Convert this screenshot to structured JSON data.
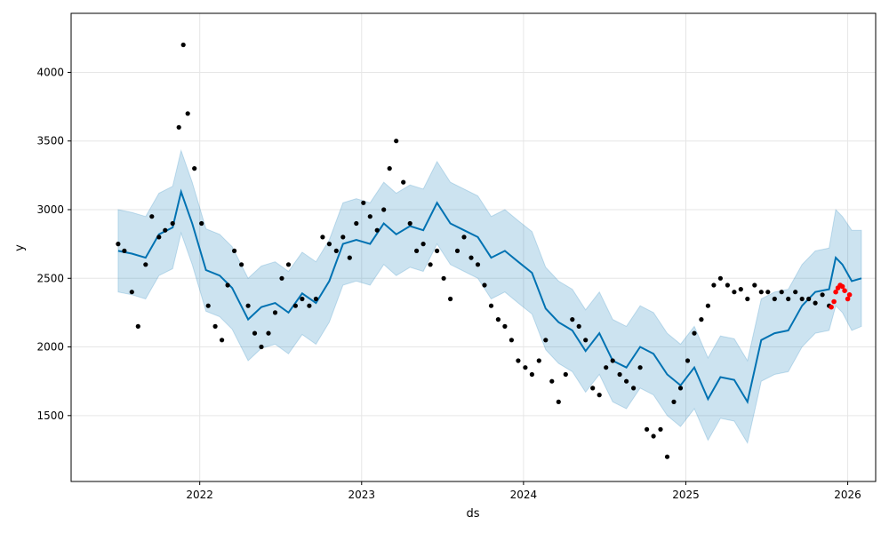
{
  "chart_data": {
    "type": "line",
    "title": "",
    "xlabel": "ds",
    "ylabel": "y",
    "x_ticks": [
      "2022",
      "2023",
      "2024",
      "2025",
      "2026"
    ],
    "y_ticks": [
      1500,
      2000,
      2500,
      3000,
      3500,
      4000
    ],
    "xlim": [
      "2021-03-17",
      "2026-03-05"
    ],
    "ylim": [
      1020,
      4430
    ],
    "grid": true,
    "legend": "none",
    "colors": {
      "forecast": "#0072b2",
      "interval": "#0072b2",
      "history": "#000000",
      "recent": "#ff0000"
    },
    "series": [
      {
        "key": "forecast",
        "x": [
          "2021-07-01",
          "2021-08-01",
          "2021-09-01",
          "2021-10-01",
          "2021-11-01",
          "2021-11-20",
          "2021-12-15",
          "2022-01-15",
          "2022-02-15",
          "2022-03-15",
          "2022-04-20",
          "2022-05-20",
          "2022-06-20",
          "2022-07-20",
          "2022-08-20",
          "2022-09-20",
          "2022-10-20",
          "2022-11-20",
          "2022-12-20",
          "2023-01-20",
          "2023-02-20",
          "2023-03-20",
          "2023-04-20",
          "2023-05-20",
          "2023-06-20",
          "2023-07-20",
          "2023-08-20",
          "2023-09-20",
          "2023-10-20",
          "2023-11-20",
          "2023-12-20",
          "2024-01-20",
          "2024-02-20",
          "2024-03-20",
          "2024-04-20",
          "2024-05-20",
          "2024-06-20",
          "2024-07-20",
          "2024-08-20",
          "2024-09-20",
          "2024-10-20",
          "2024-11-20",
          "2024-12-20",
          "2025-01-20",
          "2025-02-20",
          "2025-03-20",
          "2025-04-20",
          "2025-05-20",
          "2025-06-20",
          "2025-07-20",
          "2025-08-20",
          "2025-09-20",
          "2025-10-20",
          "2025-11-20",
          "2025-12-05",
          "2025-12-20",
          "2026-01-10",
          "2026-02-01"
        ],
        "y": [
          2700,
          2680,
          2650,
          2820,
          2870,
          3130,
          2900,
          2560,
          2520,
          2430,
          2200,
          2290,
          2320,
          2250,
          2390,
          2320,
          2480,
          2750,
          2780,
          2750,
          2900,
          2820,
          2880,
          2850,
          3050,
          2900,
          2850,
          2800,
          2650,
          2700,
          2620,
          2540,
          2280,
          2180,
          2120,
          1970,
          2100,
          1900,
          1850,
          2000,
          1950,
          1800,
          1720,
          1850,
          1620,
          1780,
          1760,
          1600,
          2050,
          2100,
          2120,
          2300,
          2400,
          2420,
          2650,
          2600,
          2480,
          2500
        ]
      },
      {
        "key": "recent",
        "x": [
          "2025-11-25",
          "2025-12-01",
          "2025-12-05",
          "2025-12-10",
          "2025-12-15",
          "2025-12-20",
          "2025-12-25",
          "2026-01-01",
          "2026-01-05"
        ],
        "y": [
          2290,
          2330,
          2400,
          2430,
          2450,
          2440,
          2410,
          2350,
          2380
        ]
      }
    ],
    "interval": {
      "x": [
        "2021-07-01",
        "2021-08-01",
        "2021-09-01",
        "2021-10-01",
        "2021-11-01",
        "2021-11-20",
        "2021-12-15",
        "2022-01-15",
        "2022-02-15",
        "2022-03-15",
        "2022-04-20",
        "2022-05-20",
        "2022-06-20",
        "2022-07-20",
        "2022-08-20",
        "2022-09-20",
        "2022-10-20",
        "2022-11-20",
        "2022-12-20",
        "2023-01-20",
        "2023-02-20",
        "2023-03-20",
        "2023-04-20",
        "2023-05-20",
        "2023-06-20",
        "2023-07-20",
        "2023-08-20",
        "2023-09-20",
        "2023-10-20",
        "2023-11-20",
        "2023-12-20",
        "2024-01-20",
        "2024-02-20",
        "2024-03-20",
        "2024-04-20",
        "2024-05-20",
        "2024-06-20",
        "2024-07-20",
        "2024-08-20",
        "2024-09-20",
        "2024-10-20",
        "2024-11-20",
        "2024-12-20",
        "2025-01-20",
        "2025-02-20",
        "2025-03-20",
        "2025-04-20",
        "2025-05-20",
        "2025-06-20",
        "2025-07-20",
        "2025-08-20",
        "2025-09-20",
        "2025-10-20",
        "2025-11-20",
        "2025-12-05",
        "2025-12-20",
        "2026-01-10",
        "2026-02-01"
      ],
      "upper": [
        3000,
        2980,
        2950,
        3120,
        3170,
        3430,
        3200,
        2860,
        2820,
        2730,
        2500,
        2590,
        2620,
        2550,
        2690,
        2620,
        2780,
        3050,
        3080,
        3050,
        3200,
        3120,
        3180,
        3150,
        3350,
        3200,
        3150,
        3100,
        2950,
        3000,
        2920,
        2840,
        2580,
        2480,
        2420,
        2270,
        2400,
        2200,
        2150,
        2300,
        2250,
        2100,
        2020,
        2150,
        1920,
        2080,
        2060,
        1900,
        2350,
        2400,
        2420,
        2600,
        2700,
        2720,
        3000,
        2950,
        2850,
        2850
      ],
      "lower": [
        2400,
        2380,
        2350,
        2520,
        2570,
        2830,
        2600,
        2260,
        2220,
        2130,
        1900,
        1990,
        2020,
        1950,
        2090,
        2020,
        2180,
        2450,
        2480,
        2450,
        2600,
        2520,
        2580,
        2550,
        2750,
        2600,
        2550,
        2500,
        2350,
        2400,
        2320,
        2240,
        1980,
        1880,
        1820,
        1670,
        1800,
        1600,
        1550,
        1700,
        1650,
        1500,
        1420,
        1550,
        1320,
        1480,
        1460,
        1300,
        1750,
        1800,
        1820,
        2000,
        2100,
        2120,
        2300,
        2250,
        2120,
        2150
      ]
    },
    "history": {
      "x": [
        "2021-07-01",
        "2021-07-15",
        "2021-08-01",
        "2021-08-15",
        "2021-09-01",
        "2021-09-15",
        "2021-10-01",
        "2021-10-15",
        "2021-11-01",
        "2021-11-15",
        "2021-11-25",
        "2021-12-05",
        "2021-12-20",
        "2022-01-05",
        "2022-01-20",
        "2022-02-05",
        "2022-02-20",
        "2022-03-05",
        "2022-03-20",
        "2022-04-05",
        "2022-04-20",
        "2022-05-05",
        "2022-05-20",
        "2022-06-05",
        "2022-06-20",
        "2022-07-05",
        "2022-07-20",
        "2022-08-05",
        "2022-08-20",
        "2022-09-05",
        "2022-09-20",
        "2022-10-05",
        "2022-10-20",
        "2022-11-05",
        "2022-11-20",
        "2022-12-05",
        "2022-12-20",
        "2023-01-05",
        "2023-01-20",
        "2023-02-05",
        "2023-02-20",
        "2023-03-05",
        "2023-03-20",
        "2023-04-05",
        "2023-04-20",
        "2023-05-05",
        "2023-05-20",
        "2023-06-05",
        "2023-06-20",
        "2023-07-05",
        "2023-07-20",
        "2023-08-05",
        "2023-08-20",
        "2023-09-05",
        "2023-09-20",
        "2023-10-05",
        "2023-10-20",
        "2023-11-05",
        "2023-11-20",
        "2023-12-05",
        "2023-12-20",
        "2024-01-05",
        "2024-01-20",
        "2024-02-05",
        "2024-02-20",
        "2024-03-05",
        "2024-03-20",
        "2024-04-05",
        "2024-04-20",
        "2024-05-05",
        "2024-05-20",
        "2024-06-05",
        "2024-06-20",
        "2024-07-05",
        "2024-07-20",
        "2024-08-05",
        "2024-08-20",
        "2024-09-05",
        "2024-09-20",
        "2024-10-05",
        "2024-10-20",
        "2024-11-05",
        "2024-11-20",
        "2024-12-05",
        "2024-12-20",
        "2025-01-05",
        "2025-01-20",
        "2025-02-05",
        "2025-02-20",
        "2025-03-05",
        "2025-03-20",
        "2025-04-05",
        "2025-04-20",
        "2025-05-05",
        "2025-05-20",
        "2025-06-05",
        "2025-06-20",
        "2025-07-05",
        "2025-07-20",
        "2025-08-05",
        "2025-08-20",
        "2025-09-05",
        "2025-09-20",
        "2025-10-05",
        "2025-10-20",
        "2025-11-05",
        "2025-11-20"
      ],
      "y": [
        2750,
        2700,
        2400,
        2150,
        2600,
        2950,
        2800,
        2850,
        2900,
        3600,
        4200,
        3700,
        3300,
        2900,
        2300,
        2150,
        2050,
        2450,
        2700,
        2600,
        2300,
        2100,
        2000,
        2100,
        2250,
        2500,
        2600,
        2300,
        2350,
        2300,
        2350,
        2800,
        2750,
        2700,
        2800,
        2650,
        2900,
        3050,
        2950,
        2850,
        3000,
        3300,
        3500,
        3200,
        2900,
        2700,
        2750,
        2600,
        2700,
        2500,
        2350,
        2700,
        2800,
        2650,
        2600,
        2450,
        2300,
        2200,
        2150,
        2050,
        1900,
        1850,
        1800,
        1900,
        2050,
        1750,
        1600,
        1800,
        2200,
        2150,
        2050,
        1700,
        1650,
        1850,
        1900,
        1800,
        1750,
        1700,
        1850,
        1400,
        1350,
        1400,
        1200,
        1600,
        1700,
        1900,
        2100,
        2200,
        2300,
        2450,
        2500,
        2450,
        2400,
        2420,
        2350,
        2450,
        2400,
        2400,
        2350,
        2400,
        2350,
        2400,
        2350,
        2350,
        2320,
        2380,
        2300
      ]
    }
  }
}
